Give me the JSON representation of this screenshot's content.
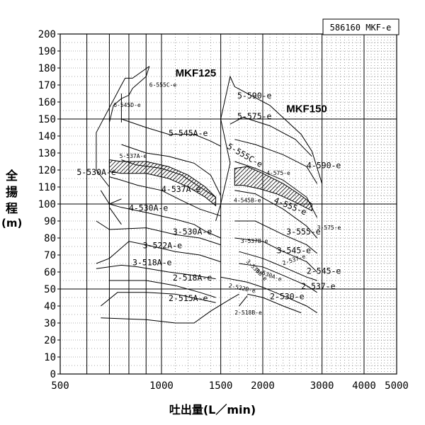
{
  "chart_data": {
    "type": "performance-curve-chart",
    "model_code": "586160 MKF-e",
    "xlabel": "吐出量(L／min)",
    "ylabel_chars": [
      "全",
      "揚",
      "程"
    ],
    "ylabel_unit": "(m)",
    "x_scale": "log",
    "xlim": [
      500,
      5000
    ],
    "ylim": [
      0,
      200
    ],
    "x_ticks": [
      500,
      1000,
      1500,
      2000,
      3000,
      4000,
      5000
    ],
    "x_tick_labels": [
      "500",
      "1000",
      "1500",
      "2000",
      "3000",
      "4000",
      "5000"
    ],
    "y_ticks": [
      0,
      10,
      20,
      30,
      40,
      50,
      60,
      70,
      80,
      90,
      100,
      110,
      120,
      130,
      140,
      150,
      160,
      170,
      180,
      190,
      200
    ],
    "grid": true,
    "group_labels": [
      {
        "text": "MKF125",
        "x": 1100,
        "y": 175
      },
      {
        "text": "MKF150",
        "x": 2350,
        "y": 154
      }
    ],
    "regions": [
      {
        "name": "2-515A-e",
        "x": 1050,
        "y": 43,
        "size": "m"
      },
      {
        "name": "2-518A-e",
        "x": 1080,
        "y": 55,
        "size": "m"
      },
      {
        "name": "3-518A-e",
        "x": 820,
        "y": 64,
        "size": "m"
      },
      {
        "name": "3-522A-e",
        "x": 880,
        "y": 74,
        "size": "m"
      },
      {
        "name": "3-530A-e",
        "x": 1080,
        "y": 82,
        "size": "m"
      },
      {
        "name": "4-530A-e",
        "x": 800,
        "y": 96,
        "size": "m"
      },
      {
        "name": "4-537A-e",
        "x": 1000,
        "y": 107,
        "size": "m"
      },
      {
        "name": "5-530A-e",
        "x": 560,
        "y": 117,
        "size": "m"
      },
      {
        "name": "5-537A-e",
        "x": 750,
        "y": 127,
        "size": "s"
      },
      {
        "name": "5-545A-e",
        "x": 1050,
        "y": 140,
        "size": "m"
      },
      {
        "name": "6-545D-e",
        "x": 720,
        "y": 157,
        "size": "s"
      },
      {
        "name": "6-555C-e",
        "x": 920,
        "y": 169,
        "size": "s"
      },
      {
        "name": "5-590-e",
        "x": 1680,
        "y": 162,
        "size": "m"
      },
      {
        "name": "5-575-e",
        "x": 1680,
        "y": 150,
        "size": "m"
      },
      {
        "name": "5-555C-e",
        "x": 1560,
        "y": 133,
        "size": "m",
        "rotate": 30
      },
      {
        "name": "4-590-e",
        "x": 2700,
        "y": 121,
        "size": "m"
      },
      {
        "name": "4-575-e",
        "x": 2050,
        "y": 117,
        "size": "s"
      },
      {
        "name": "4-555-e",
        "x": 2150,
        "y": 101,
        "size": "m",
        "rotate": 22
      },
      {
        "name": "4-545B-e",
        "x": 1640,
        "y": 101,
        "size": "s"
      },
      {
        "name": "3-575-e",
        "x": 2900,
        "y": 85,
        "size": "s"
      },
      {
        "name": "3-555-e",
        "x": 2350,
        "y": 82,
        "size": "m"
      },
      {
        "name": "3-537B-e",
        "x": 1720,
        "y": 77,
        "size": "s"
      },
      {
        "name": "3-545-e",
        "x": 2200,
        "y": 71,
        "size": "m"
      },
      {
        "name": "3-530B-e",
        "x": 1780,
        "y": 66,
        "size": "s",
        "rotate": 45
      },
      {
        "name": "2-537-e",
        "x": 2300,
        "y": 64,
        "size": "s",
        "rotate": -18
      },
      {
        "name": "3-530A-e",
        "x": 1900,
        "y": 60,
        "size": "s",
        "rotate": 20
      },
      {
        "name": "2-545-e",
        "x": 2700,
        "y": 59,
        "size": "m"
      },
      {
        "name": "2-537-e",
        "x": 2600,
        "y": 50,
        "size": "m"
      },
      {
        "name": "2-522B-e",
        "x": 1580,
        "y": 51,
        "size": "s",
        "rotate": 12
      },
      {
        "name": "2-530-e",
        "x": 2100,
        "y": 44,
        "size": "m"
      },
      {
        "name": "2-518B-e",
        "x": 1650,
        "y": 35,
        "size": "s"
      }
    ],
    "envelopes": [
      [
        [
          920,
          181
        ],
        [
          820,
          174
        ],
        [
          780,
          174
        ],
        [
          760,
          170
        ],
        [
          640,
          142
        ],
        [
          640,
          120
        ],
        [
          700,
          110
        ],
        [
          700,
          98
        ],
        [
          760,
          88
        ]
      ],
      [
        [
          700,
          148
        ],
        [
          720,
          158
        ],
        [
          760,
          162
        ],
        [
          800,
          164
        ],
        [
          820,
          168
        ],
        [
          900,
          175
        ],
        [
          920,
          181
        ]
      ],
      [
        [
          760,
          148
        ],
        [
          760,
          165
        ]
      ],
      [
        [
          760,
          150
        ],
        [
          900,
          145
        ],
        [
          1050,
          141
        ],
        [
          1250,
          141
        ],
        [
          1400,
          137
        ],
        [
          1500,
          134
        ]
      ],
      [
        [
          760,
          135
        ],
        [
          900,
          130
        ],
        [
          1050,
          128
        ],
        [
          1250,
          124
        ],
        [
          1400,
          117
        ],
        [
          1500,
          105
        ]
      ],
      [
        [
          760,
          126
        ],
        [
          840,
          123
        ],
        [
          1000,
          121
        ],
        [
          1150,
          117
        ],
        [
          1300,
          110
        ],
        [
          1450,
          104
        ]
      ],
      [
        [
          700,
          116
        ],
        [
          760,
          114
        ],
        [
          850,
          111
        ],
        [
          1000,
          108
        ],
        [
          1150,
          102
        ],
        [
          1300,
          97
        ],
        [
          1500,
          93
        ]
      ],
      [
        [
          660,
          108
        ],
        [
          700,
          100
        ],
        [
          760,
          103
        ]
      ],
      [
        [
          700,
          100
        ],
        [
          760,
          98
        ],
        [
          900,
          95
        ],
        [
          1100,
          91
        ],
        [
          1250,
          88
        ],
        [
          1350,
          84
        ],
        [
          1500,
          80
        ]
      ],
      [
        [
          640,
          90
        ],
        [
          700,
          85
        ],
        [
          900,
          86
        ],
        [
          1100,
          82
        ],
        [
          1300,
          80
        ],
        [
          1500,
          76
        ]
      ],
      [
        [
          640,
          65
        ],
        [
          700,
          68
        ],
        [
          800,
          78
        ],
        [
          900,
          76
        ],
        [
          1100,
          72
        ],
        [
          1300,
          70
        ],
        [
          1500,
          66
        ]
      ],
      [
        [
          640,
          62
        ],
        [
          760,
          64
        ],
        [
          850,
          63
        ],
        [
          1050,
          60
        ],
        [
          1250,
          58
        ],
        [
          1450,
          56
        ]
      ],
      [
        [
          700,
          55
        ],
        [
          900,
          55
        ],
        [
          1100,
          52
        ],
        [
          1300,
          48
        ],
        [
          1450,
          45
        ]
      ],
      [
        [
          660,
          40
        ],
        [
          740,
          48
        ],
        [
          900,
          48
        ],
        [
          1100,
          47
        ],
        [
          1300,
          44
        ],
        [
          1450,
          42
        ]
      ],
      [
        [
          660,
          33
        ],
        [
          900,
          32
        ],
        [
          1100,
          30
        ],
        [
          1250,
          30
        ],
        [
          1400,
          37
        ],
        [
          1600,
          44
        ],
        [
          1700,
          47
        ]
      ],
      [
        [
          1450,
          90
        ],
        [
          1500,
          100
        ],
        [
          1600,
          124
        ],
        [
          1500,
          150
        ],
        [
          1600,
          175
        ],
        [
          1650,
          169
        ],
        [
          2100,
          158
        ],
        [
          2600,
          141
        ],
        [
          2800,
          131
        ],
        [
          3000,
          112
        ]
      ],
      [
        [
          1600,
          147
        ],
        [
          1750,
          151
        ],
        [
          2100,
          146
        ],
        [
          2500,
          138
        ],
        [
          2800,
          128
        ]
      ],
      [
        [
          1650,
          138
        ],
        [
          1900,
          135
        ],
        [
          2300,
          129
        ],
        [
          2700,
          122
        ],
        [
          2900,
          112
        ]
      ],
      [
        [
          1650,
          125
        ],
        [
          1900,
          121
        ],
        [
          2300,
          114
        ],
        [
          2700,
          104
        ],
        [
          2900,
          92
        ]
      ],
      [
        [
          1650,
          108
        ],
        [
          1900,
          106
        ],
        [
          2300,
          97
        ],
        [
          2700,
          87
        ],
        [
          2900,
          80
        ]
      ],
      [
        [
          1650,
          90
        ],
        [
          1900,
          90
        ],
        [
          2300,
          82
        ],
        [
          2700,
          76
        ],
        [
          2900,
          71
        ]
      ],
      [
        [
          1650,
          80
        ],
        [
          2000,
          78
        ],
        [
          2300,
          72
        ],
        [
          2700,
          66
        ],
        [
          2900,
          60
        ]
      ],
      [
        [
          1700,
          72
        ],
        [
          2000,
          68
        ],
        [
          2300,
          63
        ],
        [
          2700,
          57
        ],
        [
          2900,
          55
        ]
      ],
      [
        [
          1700,
          65
        ],
        [
          2000,
          63
        ],
        [
          2300,
          58
        ],
        [
          2700,
          52
        ],
        [
          2900,
          48
        ]
      ],
      [
        [
          1500,
          57
        ],
        [
          1800,
          54
        ],
        [
          2000,
          51
        ],
        [
          2300,
          46
        ],
        [
          2700,
          40
        ],
        [
          2900,
          36
        ]
      ],
      [
        [
          1800,
          47
        ],
        [
          2000,
          45
        ],
        [
          2300,
          40
        ],
        [
          2600,
          36
        ]
      ],
      [
        [
          1700,
          40
        ],
        [
          1800,
          46
        ]
      ]
    ],
    "hatched_bands": [
      [
        [
          700,
          126
        ],
        [
          760,
          125
        ],
        [
          900,
          125
        ],
        [
          1050,
          122
        ],
        [
          1200,
          117
        ],
        [
          1350,
          110
        ],
        [
          1450,
          104
        ],
        [
          1450,
          99
        ],
        [
          1350,
          104
        ],
        [
          1200,
          110
        ],
        [
          1050,
          115
        ],
        [
          900,
          118
        ],
        [
          760,
          118
        ],
        [
          700,
          119
        ]
      ],
      [
        [
          1650,
          121
        ],
        [
          1800,
          122
        ],
        [
          2000,
          118
        ],
        [
          2300,
          112
        ],
        [
          2600,
          105
        ],
        [
          2800,
          100
        ],
        [
          2800,
          96
        ],
        [
          2500,
          101
        ],
        [
          2200,
          106
        ],
        [
          1950,
          109
        ],
        [
          1750,
          111
        ],
        [
          1650,
          111
        ]
      ]
    ]
  }
}
